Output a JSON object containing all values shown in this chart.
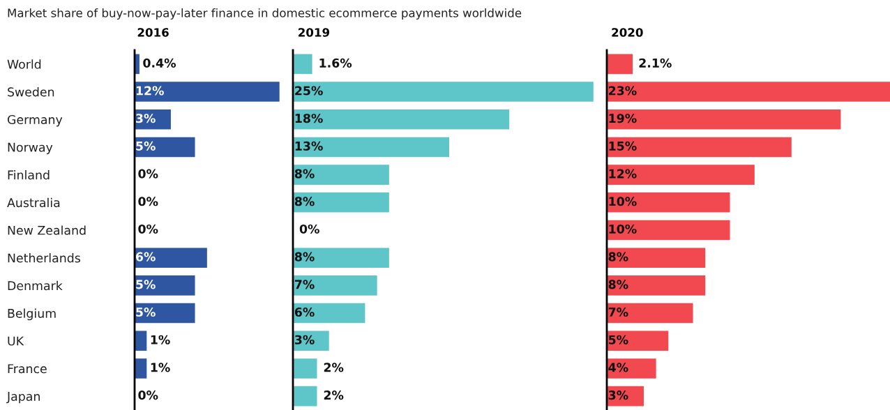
{
  "chart_data": [
    {
      "type": "bar",
      "orientation": "horizontal",
      "title": "2016",
      "annotations": [
        "Market share of buy-now-pay-later finance in domestic ecommerce payments worldwide"
      ],
      "categories": [
        "World",
        "Sweden",
        "Germany",
        "Norway",
        "Finland",
        "Australia",
        "New Zealand",
        "Netherlands",
        "Denmark",
        "Belgium",
        "UK",
        "France",
        "Japan"
      ],
      "values": [
        0.4,
        12,
        3,
        5,
        0,
        0,
        0,
        6,
        5,
        5,
        1,
        1,
        0
      ],
      "value_labels": [
        "0.4%",
        "12%",
        "3%",
        "5%",
        "0%",
        "0%",
        "0%",
        "6%",
        "5%",
        "5%",
        "1%",
        "1%",
        "0%"
      ],
      "color": "#2f56a0",
      "xlim": [
        0,
        13
      ],
      "tick_labels": "y"
    },
    {
      "type": "bar",
      "orientation": "horizontal",
      "title": "2019",
      "categories": [
        null,
        null,
        null,
        null,
        null,
        null,
        null,
        null,
        null,
        null,
        null,
        null,
        null
      ],
      "values": [
        1.6,
        25,
        18,
        13,
        8,
        8,
        0,
        8,
        7,
        6,
        3,
        2,
        2
      ],
      "value_labels": [
        "1.6%",
        "25%",
        "18%",
        "13%",
        "8%",
        "8%",
        "0%",
        "8%",
        "7%",
        "6%",
        "3%",
        "2%",
        "2%"
      ],
      "color": "#5ec5c8",
      "xlim": [
        0,
        26
      ],
      "tick_labels": false
    },
    {
      "type": "bar",
      "orientation": "horizontal",
      "title": "2020",
      "categories": [
        null,
        null,
        null,
        null,
        null,
        null,
        null,
        null,
        null,
        null,
        null,
        null,
        null
      ],
      "values": [
        2.1,
        23,
        19,
        15,
        12,
        10,
        10,
        8,
        8,
        7,
        5,
        4,
        3
      ],
      "value_labels": [
        "2.1%",
        "23%",
        "19%",
        "15%",
        "12%",
        "10%",
        "10%",
        "8%",
        "8%",
        "7%",
        "5%",
        "4%",
        "3%"
      ],
      "color": "#f2484f",
      "xlim": [
        0,
        23
      ],
      "tick_labels": false
    }
  ]
}
